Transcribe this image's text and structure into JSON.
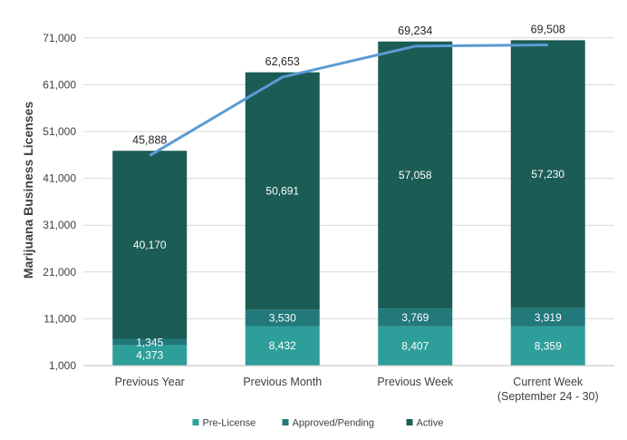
{
  "chart_data": {
    "type": "bar",
    "stacked": true,
    "ylabel": "Marijuana Business Licenses",
    "xlabel": "",
    "ylim": [
      1000,
      76000
    ],
    "yticks": [
      1000,
      11000,
      21000,
      31000,
      41000,
      51000,
      61000,
      71000
    ],
    "ytick_labels": [
      "1,000",
      "11,000",
      "21,000",
      "31,000",
      "41,000",
      "51,000",
      "61,000",
      "71,000"
    ],
    "grid": true,
    "categories": [
      [
        "Previous Year"
      ],
      [
        "Previous Month"
      ],
      [
        "Previous Week"
      ],
      [
        "Current Week",
        "(September 24 - 30)"
      ]
    ],
    "series": [
      {
        "name": "Pre-License",
        "color": "#2e9e9a",
        "values": [
          4373,
          8432,
          8407,
          8359
        ],
        "labels": [
          "4,373",
          "8,432",
          "8,407",
          "8,359"
        ],
        "label_color": "#ffffff"
      },
      {
        "name": "Approved/Pending",
        "color": "#22787a",
        "values": [
          1345,
          3530,
          3769,
          3919
        ],
        "labels": [
          "1,345",
          "3,530",
          "3,769",
          "3,919"
        ],
        "label_color": "#ffffff"
      },
      {
        "name": "Active",
        "color": "#1b5c55",
        "values": [
          40170,
          50691,
          57058,
          57230
        ],
        "labels": [
          "40,170",
          "50,691",
          "57,058",
          "57,230"
        ],
        "label_color": "#ffffff"
      }
    ],
    "totals": {
      "values": [
        45888,
        62653,
        69234,
        69508
      ],
      "labels": [
        "45,888",
        "62,653",
        "69,234",
        "69,508"
      ],
      "line_color": "#5b9bd5"
    },
    "legend": {
      "position": "bottom"
    }
  }
}
